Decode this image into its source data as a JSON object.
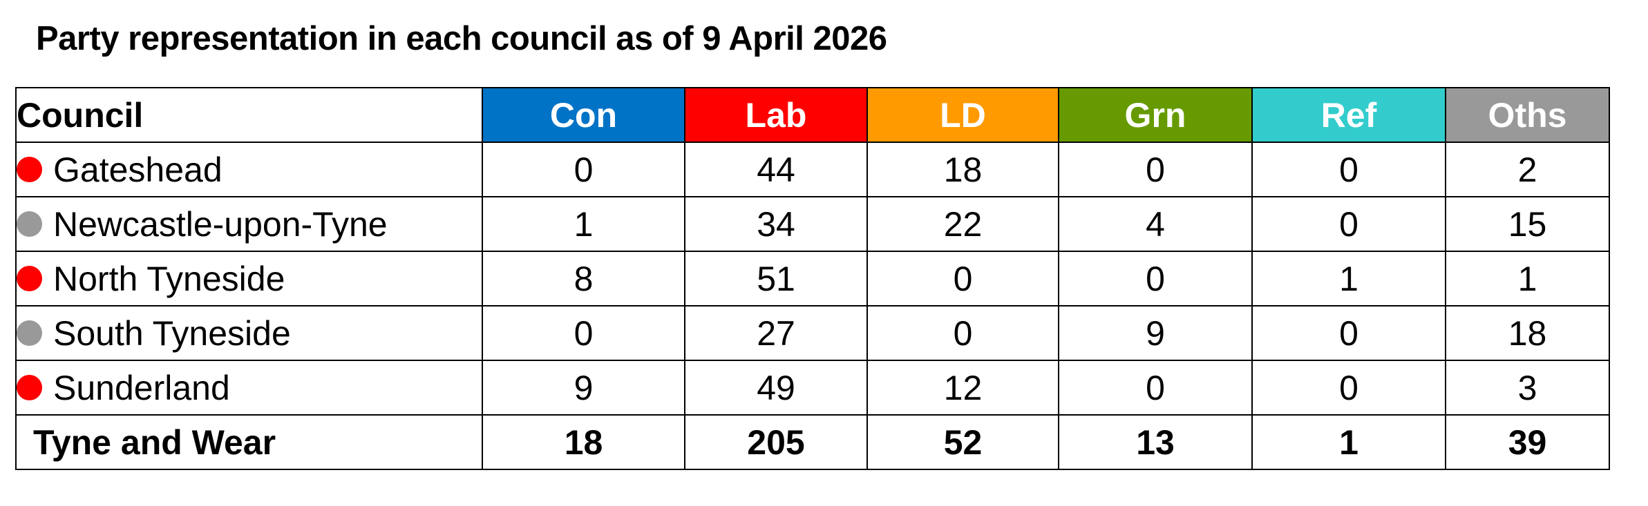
{
  "title": "Party representation in each council as of 9 April 2026",
  "table": {
    "header": {
      "council": "Council",
      "parties": [
        {
          "label": "Con",
          "color": "#0073c6"
        },
        {
          "label": "Lab",
          "color": "#fe0000"
        },
        {
          "label": "LD",
          "color": "#ff9a00"
        },
        {
          "label": "Grn",
          "color": "#669a00"
        },
        {
          "label": "Ref",
          "color": "#33cccc"
        },
        {
          "label": "Oths",
          "color": "#999999"
        }
      ]
    },
    "rows": [
      {
        "name": "Gateshead",
        "dot_color": "#fe0000",
        "values": [
          "0",
          "44",
          "18",
          "0",
          "0",
          "2"
        ]
      },
      {
        "name": "Newcastle-upon-Tyne",
        "dot_color": "#999999",
        "values": [
          "1",
          "34",
          "22",
          "4",
          "0",
          "15"
        ]
      },
      {
        "name": "North Tyneside",
        "dot_color": "#fe0000",
        "values": [
          "8",
          "51",
          "0",
          "0",
          "1",
          "1"
        ]
      },
      {
        "name": "South Tyneside",
        "dot_color": "#999999",
        "values": [
          "0",
          "27",
          "0",
          "9",
          "0",
          "18"
        ]
      },
      {
        "name": "Sunderland",
        "dot_color": "#fe0000",
        "values": [
          "9",
          "49",
          "12",
          "0",
          "0",
          "3"
        ]
      }
    ],
    "total": {
      "name": "Tyne and Wear",
      "values": [
        "18",
        "205",
        "52",
        "13",
        "1",
        "39"
      ]
    }
  }
}
